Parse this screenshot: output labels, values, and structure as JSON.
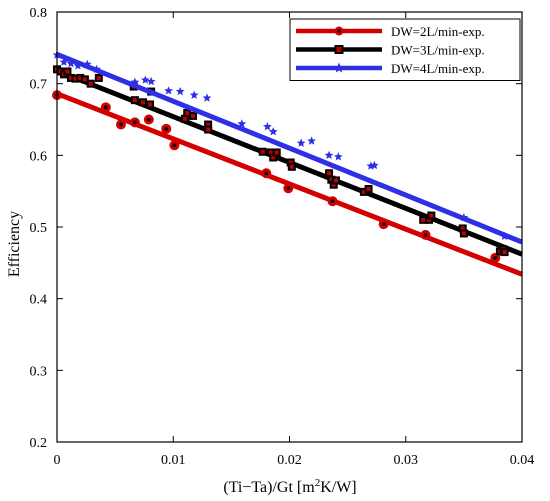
{
  "chart_data": {
    "type": "scatter",
    "title": "",
    "xlabel_parts": {
      "main": "(Ti−Ta)/Gt [m",
      "sup": "2",
      "tail": "K/W]"
    },
    "ylabel": "Efficiency",
    "xlim": [
      0,
      0.04
    ],
    "ylim": [
      0.2,
      0.8
    ],
    "xticks": [
      0,
      0.01,
      0.02,
      0.03,
      0.04
    ],
    "xtick_labels": [
      "0",
      "0.01",
      "0.02",
      "0.03",
      "0.04"
    ],
    "yticks": [
      0.2,
      0.3,
      0.4,
      0.5,
      0.6,
      0.7,
      0.8
    ],
    "ytick_labels": [
      "0.2",
      "0.3",
      "0.4",
      "0.5",
      "0.6",
      "0.7",
      "0.8"
    ],
    "grid": false,
    "legend_position": "top-right",
    "series": [
      {
        "name": "DW=2L/min-exp.",
        "color": "#d40000",
        "marker": "circle",
        "fit": {
          "intercept": 0.686,
          "slope": -6.3
        },
        "points": [
          [
            0.0,
            0.684
          ],
          [
            0.0042,
            0.667
          ],
          [
            0.0055,
            0.643
          ],
          [
            0.0067,
            0.646
          ],
          [
            0.0079,
            0.65
          ],
          [
            0.0094,
            0.637
          ],
          [
            0.0101,
            0.614
          ],
          [
            0.018,
            0.575
          ],
          [
            0.0199,
            0.554
          ],
          [
            0.0237,
            0.536
          ],
          [
            0.0281,
            0.504
          ],
          [
            0.0317,
            0.489
          ],
          [
            0.0377,
            0.457
          ]
        ]
      },
      {
        "name": "DW=3L/min-exp.",
        "color": "#000000",
        "marker": "square",
        "fit": {
          "intercept": 0.718,
          "slope": -6.4
        },
        "points": [
          [
            0.0,
            0.72
          ],
          [
            0.0003,
            0.717
          ],
          [
            0.0006,
            0.713
          ],
          [
            0.0009,
            0.717
          ],
          [
            0.0012,
            0.708
          ],
          [
            0.0016,
            0.707
          ],
          [
            0.002,
            0.708
          ],
          [
            0.0024,
            0.706
          ],
          [
            0.0029,
            0.7
          ],
          [
            0.0036,
            0.708
          ],
          [
            0.0066,
            0.696
          ],
          [
            0.0067,
            0.677
          ],
          [
            0.0074,
            0.674
          ],
          [
            0.008,
            0.671
          ],
          [
            0.0081,
            0.689
          ],
          [
            0.011,
            0.651
          ],
          [
            0.0112,
            0.659
          ],
          [
            0.0117,
            0.655
          ],
          [
            0.013,
            0.643
          ],
          [
            0.013,
            0.636
          ],
          [
            0.0177,
            0.605
          ],
          [
            0.0184,
            0.604
          ],
          [
            0.0186,
            0.597
          ],
          [
            0.0189,
            0.604
          ],
          [
            0.0201,
            0.59
          ],
          [
            0.0202,
            0.584
          ],
          [
            0.0234,
            0.575
          ],
          [
            0.0236,
            0.566
          ],
          [
            0.0238,
            0.559
          ],
          [
            0.024,
            0.565
          ],
          [
            0.0264,
            0.549
          ],
          [
            0.0268,
            0.553
          ],
          [
            0.0315,
            0.51
          ],
          [
            0.032,
            0.51
          ],
          [
            0.0322,
            0.516
          ],
          [
            0.0349,
            0.498
          ],
          [
            0.035,
            0.491
          ],
          [
            0.0381,
            0.466
          ],
          [
            0.0384,
            0.469
          ],
          [
            0.0385,
            0.465
          ]
        ]
      },
      {
        "name": "DW=4L/min-exp.",
        "color": "#2f2fe6",
        "marker": "star",
        "fit": {
          "intercept": 0.741,
          "slope": -6.55
        },
        "points": [
          [
            0.0,
            0.74
          ],
          [
            0.0006,
            0.73
          ],
          [
            0.0012,
            0.728
          ],
          [
            0.0018,
            0.725
          ],
          [
            0.0026,
            0.727
          ],
          [
            0.0034,
            0.72
          ],
          [
            0.0067,
            0.702
          ],
          [
            0.0076,
            0.705
          ],
          [
            0.0081,
            0.703
          ],
          [
            0.0096,
            0.69
          ],
          [
            0.0106,
            0.689
          ],
          [
            0.0118,
            0.684
          ],
          [
            0.0129,
            0.68
          ],
          [
            0.0159,
            0.644
          ],
          [
            0.0181,
            0.64
          ],
          [
            0.0186,
            0.633
          ],
          [
            0.021,
            0.617
          ],
          [
            0.0219,
            0.62
          ],
          [
            0.0234,
            0.6
          ],
          [
            0.0242,
            0.598
          ],
          [
            0.027,
            0.585
          ],
          [
            0.0273,
            0.586
          ],
          [
            0.035,
            0.513
          ],
          [
            0.0385,
            0.487
          ]
        ]
      }
    ]
  }
}
